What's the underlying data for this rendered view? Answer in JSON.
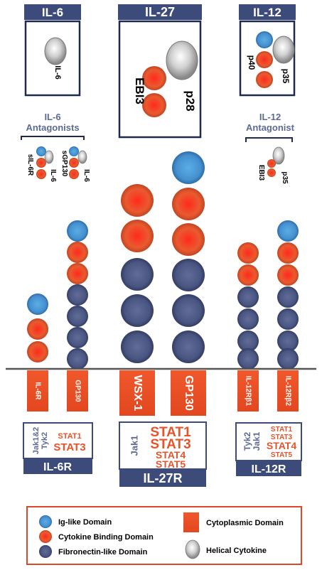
{
  "colors": {
    "navy": "#3d4b7a",
    "red": "#e8532a",
    "blue": "#4b94d2",
    "gray": "#bfbfbf",
    "slate": "#5d6a94",
    "legend_border": "#d94a2b"
  },
  "cytokines": {
    "il6": {
      "title": "IL-6",
      "helix": "IL-6"
    },
    "il27": {
      "title": "IL-27",
      "ebi3": "EBI3",
      "p28": "p28"
    },
    "il12": {
      "title": "IL-12",
      "p40": "p40",
      "p35": "p35"
    }
  },
  "antagonists": {
    "il6": {
      "heading_line1": "IL-6",
      "heading_line2": "Antagonists",
      "sil6r": "sIL-6R",
      "il6_a": "IL-6",
      "sgp130": "sGP130",
      "il6_b": "IL-6"
    },
    "il12": {
      "heading_line1": "IL-12",
      "heading_line2": "Antagonist",
      "ebi3": "EBI3",
      "p35": "p35"
    }
  },
  "receptors": {
    "il6r": "IL-6R",
    "gp130_a": "GP130",
    "wsx1": "WSX-1",
    "gp130_b": "GP130",
    "il12rb1": "IL-12Rβ1",
    "il12rb2": "IL-12Rβ2"
  },
  "signaling": {
    "il6r": {
      "jaks": [
        "Jak1&2",
        "Tyk2"
      ],
      "stat_small": "STAT1",
      "stat_big": "STAT3",
      "name": "IL-6R"
    },
    "il27r": {
      "jak": "Jak1",
      "stats": [
        "STAT1",
        "STAT3",
        "STAT4",
        "STAT5"
      ],
      "name": "IL-27R"
    },
    "il12r": {
      "jaks": [
        "Tyk2",
        "Jak1"
      ],
      "stats": [
        "STAT1",
        "STAT3",
        "STAT4",
        "STAT5"
      ],
      "name": "IL-12R"
    }
  },
  "legend": {
    "ig": "Ig-like Domain",
    "cbd": "Cytokine Binding Domain",
    "fn": "Fibronectin-like Domain",
    "cyto": "Cytoplasmic Domain",
    "helical": "Helical Cytokine"
  }
}
